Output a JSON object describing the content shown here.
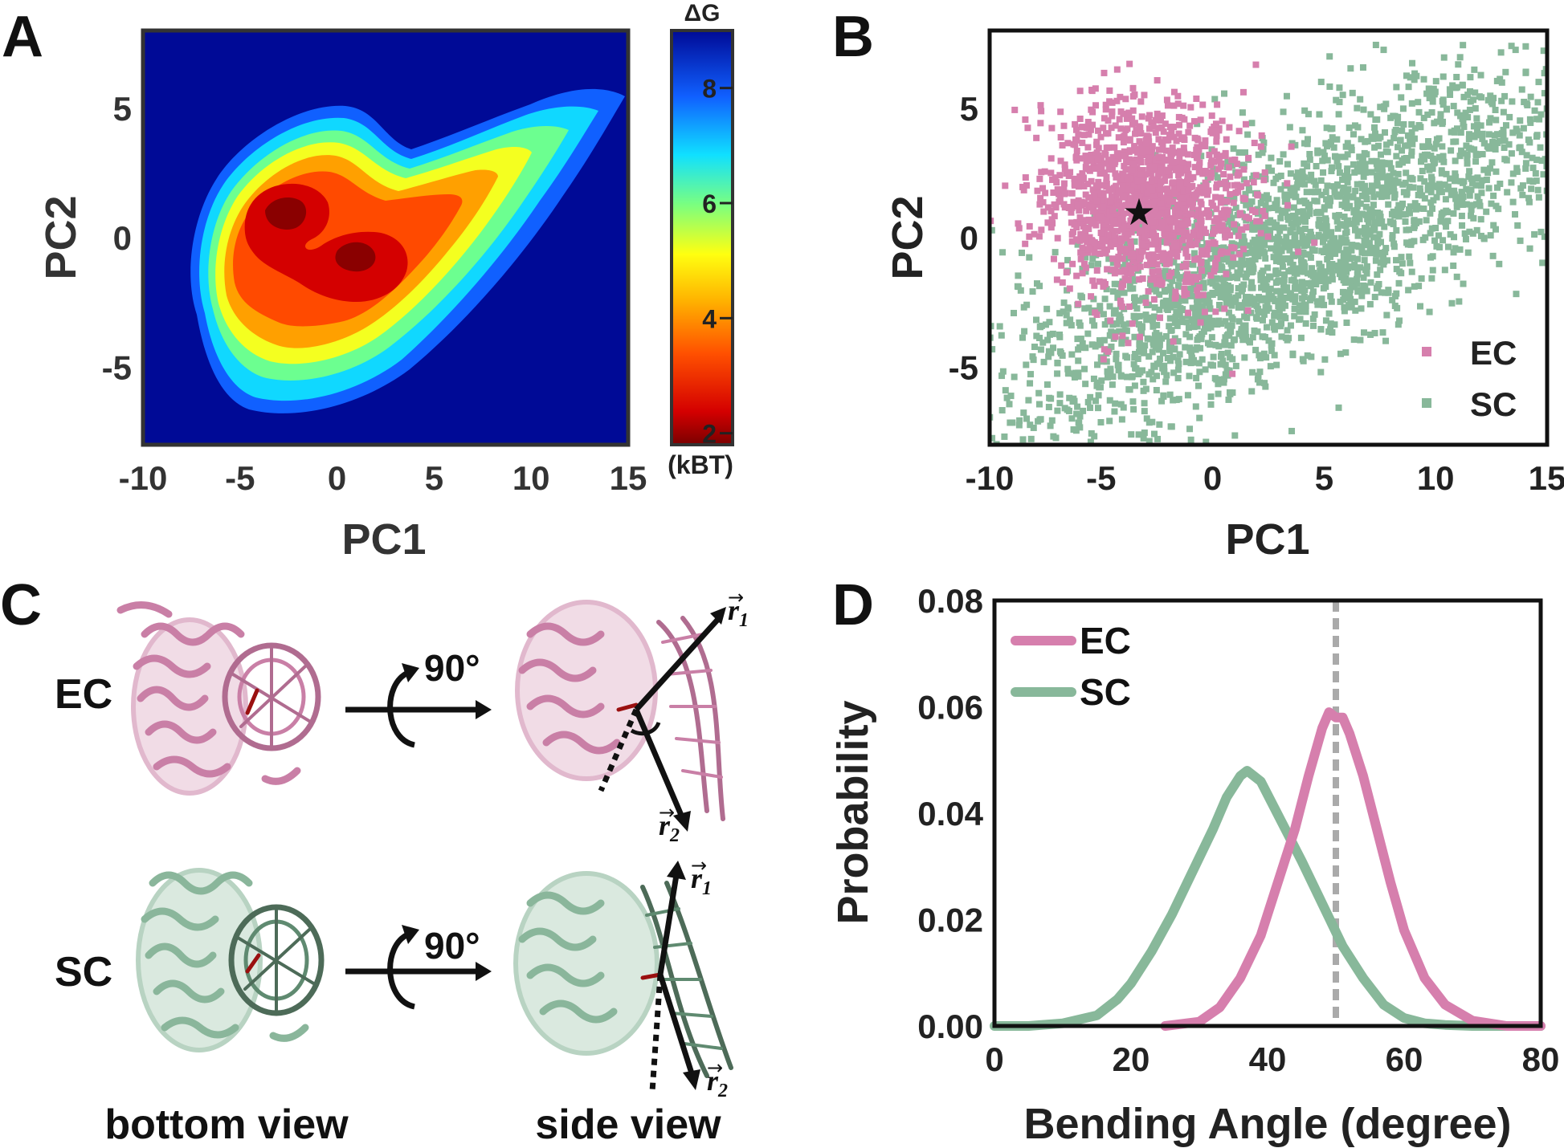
{
  "panels": {
    "A": {
      "letter": "A",
      "chart_data": {
        "type": "heatmap",
        "xlabel": "PC1",
        "ylabel": "PC2",
        "xlim": [
          -10,
          15
        ],
        "ylim": [
          -8,
          8
        ],
        "xticks": [
          "-10",
          "-5",
          "0",
          "5",
          "10",
          "15"
        ],
        "yticks": [
          "5",
          "0",
          "-5"
        ],
        "colorbar": {
          "title": "ΔG",
          "unit": "(kBT)",
          "range": [
            1.8,
            9.0
          ],
          "ticks": [
            "8",
            "6",
            "4",
            "2"
          ]
        },
        "minima": [
          {
            "pc1": -2.5,
            "pc2": 1.5,
            "dG": 1.8
          },
          {
            "pc1": 1.0,
            "pc2": -0.8,
            "dG": 1.9
          }
        ]
      }
    },
    "B": {
      "letter": "B",
      "chart_data": {
        "type": "scatter",
        "xlabel": "PC1",
        "ylabel": "PC2",
        "xlim": [
          -10,
          15
        ],
        "ylim": [
          -8,
          8
        ],
        "xticks": [
          "-10",
          "-5",
          "0",
          "5",
          "10",
          "15"
        ],
        "yticks": [
          "5",
          "0",
          "-5"
        ],
        "legend_position": "bottom-right",
        "series": [
          {
            "name": "EC",
            "color": "#d67fad",
            "center": [
              -3.0,
              1.5
            ],
            "spread": [
              2.6,
              2.2
            ]
          },
          {
            "name": "SC",
            "color": "#88b89a",
            "center": [
              3.5,
              -0.5
            ],
            "spread": [
              6.5,
              2.2
            ],
            "trend": 0.42
          }
        ],
        "marker": {
          "symbol": "★",
          "pc1": -3.3,
          "pc2": 1.0
        }
      }
    },
    "C": {
      "letter": "C",
      "rows": [
        {
          "label": "EC",
          "color": "#d08caf"
        },
        {
          "label": "SC",
          "color": "#8ab69b"
        }
      ],
      "rotation_label": "90°",
      "vector_r1": "r",
      "vector_r1_sub": "1",
      "vector_r2": "r",
      "vector_r2_sub": "2",
      "captions": [
        "bottom view",
        "side view"
      ]
    },
    "D": {
      "letter": "D",
      "chart_data": {
        "type": "line",
        "xlabel": "Bending Angle (degree)",
        "ylabel": "Probability",
        "xlim": [
          0,
          80
        ],
        "ylim": [
          0,
          0.08
        ],
        "xticks": [
          "0",
          "20",
          "40",
          "60",
          "80"
        ],
        "yticks": [
          "0.00",
          "0.02",
          "0.04",
          "0.06",
          "0.08"
        ],
        "reference_line_x": 50,
        "legend_position": "top-left",
        "series": [
          {
            "name": "EC",
            "color": "#d67fad",
            "x": [
              25,
              30,
              33,
              36,
              39,
              42,
              44,
              46,
              48,
              49,
              50,
              51,
              52,
              54,
              56,
              58,
              60,
              63,
              66,
              70,
              75,
              80
            ],
            "y": [
              0,
              0.0008,
              0.0035,
              0.009,
              0.017,
              0.029,
              0.037,
              0.047,
              0.056,
              0.059,
              0.058,
              0.058,
              0.055,
              0.047,
              0.037,
              0.027,
              0.018,
              0.009,
              0.004,
              0.001,
              0,
              0
            ]
          },
          {
            "name": "SC",
            "color": "#88b89a",
            "x": [
              0,
              5,
              10,
              15,
              18,
              20,
              23,
              26,
              29,
              32,
              34,
              36,
              37,
              38,
              39,
              41,
              43,
              45,
              48,
              51,
              54,
              57,
              60,
              63,
              66,
              70,
              75,
              80
            ],
            "y": [
              0,
              0,
              0.0005,
              0.002,
              0.005,
              0.008,
              0.014,
              0.021,
              0.029,
              0.037,
              0.043,
              0.047,
              0.048,
              0.047,
              0.046,
              0.041,
              0.036,
              0.031,
              0.023,
              0.015,
              0.009,
              0.004,
              0.0015,
              0.0005,
              0.0002,
              0,
              0,
              0
            ]
          }
        ]
      }
    }
  }
}
